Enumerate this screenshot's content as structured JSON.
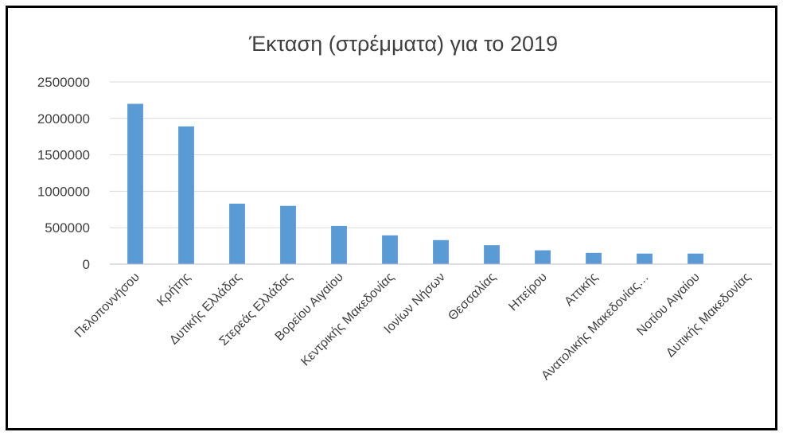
{
  "chart_data": {
    "type": "bar",
    "title": "Έκταση (στρέμματα) για το 2019",
    "xlabel": "",
    "ylabel": "",
    "ylim": [
      0,
      2500000
    ],
    "yticks": [
      0,
      500000,
      1000000,
      1500000,
      2000000,
      2500000
    ],
    "ytick_labels": [
      "0",
      "500000",
      "1000000",
      "1500000",
      "2000000",
      "2500000"
    ],
    "grid": true,
    "legend": "none",
    "bar_color": "#5b9bd5",
    "categories": [
      "Πελοποννήσου",
      "Κρήτης",
      "Δυτικής Ελλάδας",
      "Στερεάς Ελλάδας",
      "Βορείου Αιγαίου",
      "Κεντρικής Μακεδονίας",
      "Ιονίων Νήσων",
      "Θεσσαλίας",
      "Ηπείρου",
      "Αττικής",
      "Ανατολικής Μακεδονίας…",
      "Νοτίου Αιγαίου",
      "Δυτικής Μακεδονίας"
    ],
    "values": [
      2200000,
      1890000,
      830000,
      800000,
      525000,
      395000,
      330000,
      260000,
      190000,
      155000,
      145000,
      145000,
      0
    ]
  }
}
